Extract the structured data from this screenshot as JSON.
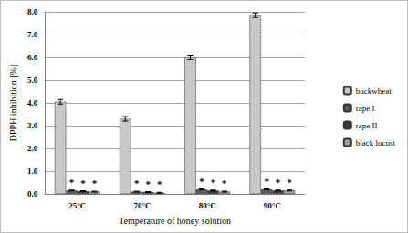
{
  "chart_data": {
    "type": "bar",
    "x_label": "Temperature of honey solution",
    "y_label": "DPPH inhibition [%]",
    "categories": [
      "25°C",
      "70°C",
      "80°C",
      "90°C"
    ],
    "series": [
      {
        "name": "buckwheat",
        "color": "#c8c8c8",
        "values": [
          4.05,
          3.3,
          6.0,
          7.85
        ],
        "errors": [
          0.1,
          0.1,
          0.1,
          0.1
        ]
      },
      {
        "name": "rape I",
        "color": "#5a5a5a",
        "values": [
          0.15,
          0.1,
          0.2,
          0.2
        ],
        "errors": [
          0.02,
          0.02,
          0.02,
          0.02
        ],
        "annotation": "*"
      },
      {
        "name": "rape II",
        "color": "#3a3a3a",
        "values": [
          0.12,
          0.08,
          0.15,
          0.15
        ],
        "errors": [
          0.02,
          0.02,
          0.02,
          0.02
        ],
        "annotation": "*"
      },
      {
        "name": "black locust",
        "color": "#a0a0a0",
        "values": [
          0.1,
          0.05,
          0.1,
          0.15
        ],
        "errors": [
          0.02,
          0.02,
          0.02,
          0.02
        ],
        "annotation": "*"
      }
    ],
    "ylim": [
      0,
      8
    ],
    "yticks": [
      {
        "value": 0,
        "label": "0.0"
      },
      {
        "value": 1,
        "label": "1.0"
      },
      {
        "value": 2,
        "label": "2.0"
      },
      {
        "value": 3,
        "label": "3.0"
      },
      {
        "value": 4,
        "label": "4.0"
      },
      {
        "value": 5,
        "label": "5.0"
      },
      {
        "value": 6,
        "label": "6.0"
      },
      {
        "value": 7,
        "label": "7.0"
      },
      {
        "value": 8,
        "label": "8.0"
      }
    ],
    "grid": true,
    "legend": "right"
  }
}
